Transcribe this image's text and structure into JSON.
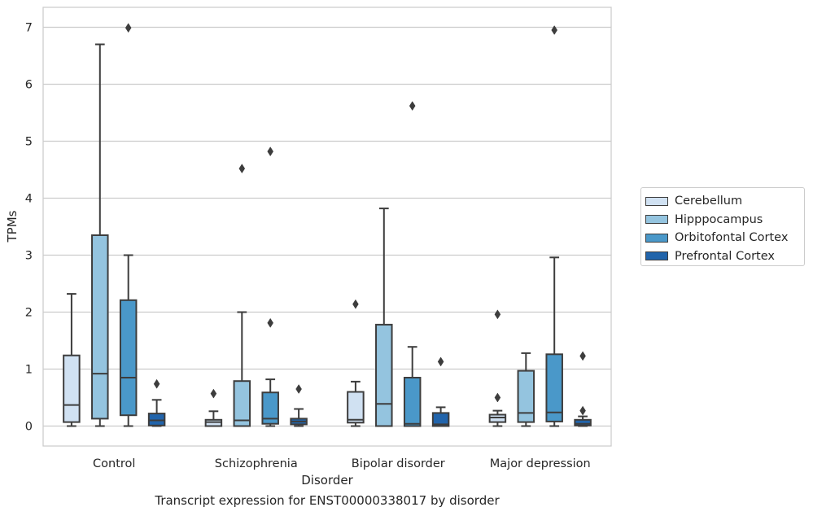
{
  "chart_data": {
    "type": "boxplot",
    "title": "",
    "caption": "Transcript expression for ENST00000338017 by disorder",
    "xlabel": "Disorder",
    "ylabel": "TPMs",
    "ylim": [
      -0.35,
      7.35
    ],
    "yticks": [
      "0",
      "1",
      "2",
      "3",
      "4",
      "5",
      "6",
      "7"
    ],
    "grid": "horizontal",
    "legend_position": "right",
    "categories": [
      "Control",
      "Schizophrenia",
      "Bipolar disorder",
      "Major depression"
    ],
    "series": [
      {
        "name": "Cerebellum",
        "color": "#d0e1f2",
        "boxes": [
          {
            "whislo": 0.0,
            "q1": 0.07,
            "med": 0.37,
            "q3": 1.24,
            "whishi": 2.32,
            "fliers": []
          },
          {
            "whislo": 0.0,
            "q1": 0.0,
            "med": 0.07,
            "q3": 0.11,
            "whishi": 0.26,
            "fliers": [
              0.57
            ]
          },
          {
            "whislo": 0.0,
            "q1": 0.06,
            "med": 0.11,
            "q3": 0.6,
            "whishi": 0.78,
            "fliers": [
              2.14
            ]
          },
          {
            "whislo": 0.0,
            "q1": 0.07,
            "med": 0.15,
            "q3": 0.2,
            "whishi": 0.27,
            "fliers": [
              0.5,
              1.96
            ]
          }
        ]
      },
      {
        "name": "Hipppocampus",
        "color": "#94c4df",
        "boxes": [
          {
            "whislo": 0.0,
            "q1": 0.13,
            "med": 0.92,
            "q3": 3.35,
            "whishi": 6.7,
            "fliers": []
          },
          {
            "whislo": 0.0,
            "q1": 0.0,
            "med": 0.1,
            "q3": 0.79,
            "whishi": 2.0,
            "fliers": [
              4.52
            ]
          },
          {
            "whislo": 0.0,
            "q1": 0.0,
            "med": 0.39,
            "q3": 1.78,
            "whishi": 3.82,
            "fliers": []
          },
          {
            "whislo": 0.0,
            "q1": 0.07,
            "med": 0.23,
            "q3": 0.97,
            "whishi": 1.28,
            "fliers": []
          }
        ]
      },
      {
        "name": "Orbitofontal Cortex",
        "color": "#4a98c9",
        "boxes": [
          {
            "whislo": 0.0,
            "q1": 0.19,
            "med": 0.85,
            "q3": 2.21,
            "whishi": 3.0,
            "fliers": [
              6.99
            ]
          },
          {
            "whislo": 0.0,
            "q1": 0.04,
            "med": 0.13,
            "q3": 0.59,
            "whishi": 0.82,
            "fliers": [
              1.81,
              4.82
            ]
          },
          {
            "whislo": 0.0,
            "q1": 0.0,
            "med": 0.04,
            "q3": 0.85,
            "whishi": 1.39,
            "fliers": [
              5.62
            ]
          },
          {
            "whislo": 0.0,
            "q1": 0.08,
            "med": 0.24,
            "q3": 1.26,
            "whishi": 2.96,
            "fliers": [
              6.95
            ]
          }
        ]
      },
      {
        "name": "Prefrontal Cortex",
        "color": "#2164ab",
        "boxes": [
          {
            "whislo": 0.0,
            "q1": 0.01,
            "med": 0.1,
            "q3": 0.22,
            "whishi": 0.46,
            "fliers": [
              0.74
            ]
          },
          {
            "whislo": 0.0,
            "q1": 0.03,
            "med": 0.08,
            "q3": 0.13,
            "whishi": 0.3,
            "fliers": [
              0.65
            ]
          },
          {
            "whislo": 0.0,
            "q1": 0.0,
            "med": 0.03,
            "q3": 0.23,
            "whishi": 0.33,
            "fliers": [
              1.13
            ]
          },
          {
            "whislo": 0.0,
            "q1": 0.01,
            "med": 0.04,
            "q3": 0.11,
            "whishi": 0.17,
            "fliers": [
              0.27,
              1.23
            ]
          }
        ]
      }
    ]
  }
}
